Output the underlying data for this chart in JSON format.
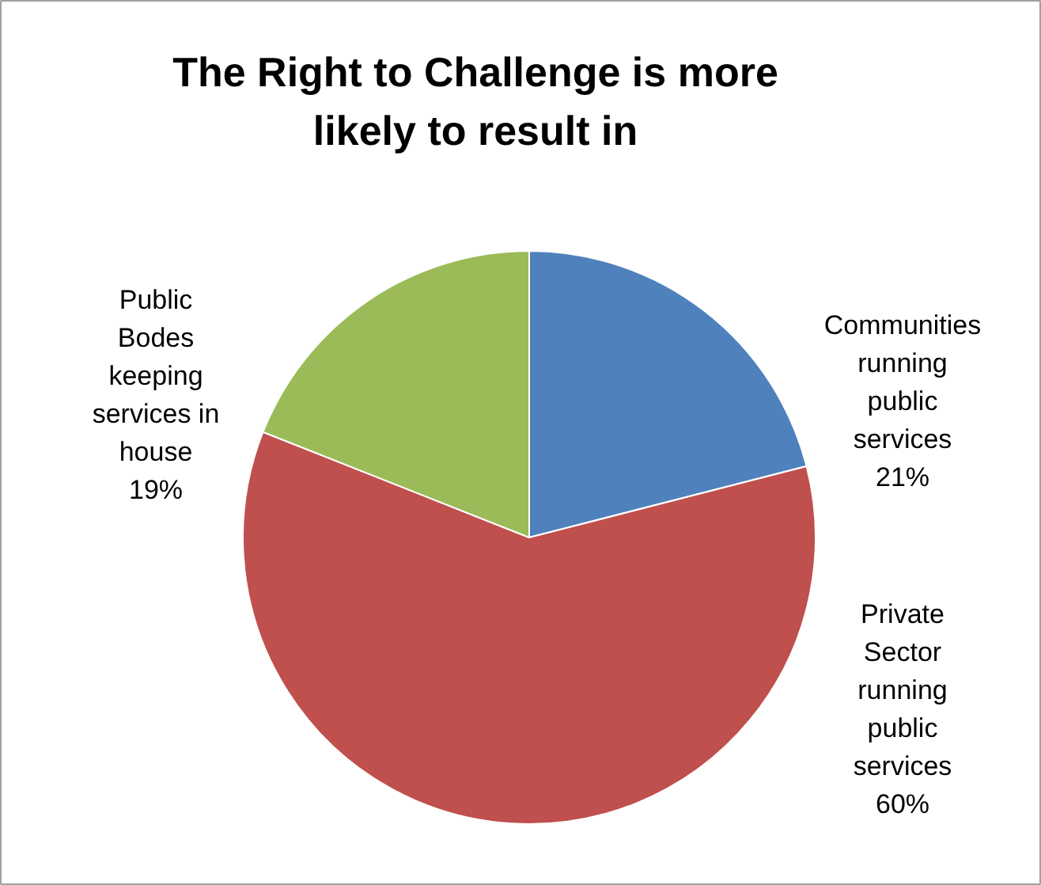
{
  "chart_data": {
    "type": "pie",
    "title": "The Right to Challenge is more likely to result in",
    "categories": [
      "Communities running public services",
      "Private Sector running public services",
      "Public Bodes keeping services in house"
    ],
    "values": [
      21,
      60,
      19
    ],
    "value_labels": [
      "21%",
      "60%",
      "19%"
    ],
    "colors": [
      "#4f81bd",
      "#c0504d",
      "#9bbb59"
    ]
  }
}
